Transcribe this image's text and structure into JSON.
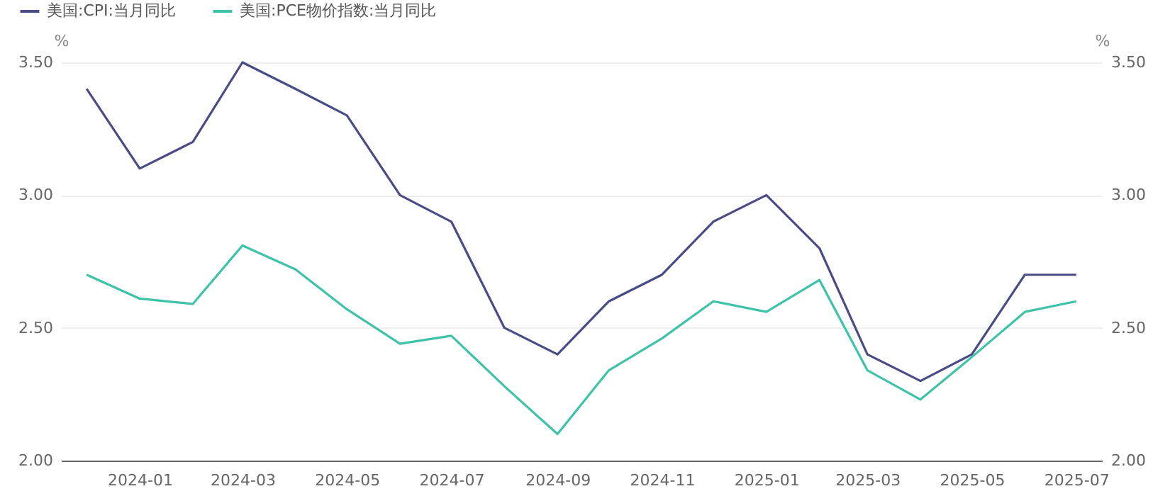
{
  "chart_data": {
    "type": "line",
    "x": [
      "2023-12",
      "2024-01",
      "2024-02",
      "2024-03",
      "2024-04",
      "2024-05",
      "2024-06",
      "2024-07",
      "2024-08",
      "2024-09",
      "2024-10",
      "2024-11",
      "2024-12",
      "2025-01",
      "2025-02",
      "2025-03",
      "2025-04",
      "2025-05",
      "2025-06",
      "2025-07"
    ],
    "series": [
      {
        "name": "美国:CPI:当月同比",
        "color": "#4b4b85",
        "values": [
          3.4,
          3.1,
          3.2,
          3.5,
          3.4,
          3.3,
          3.0,
          2.9,
          2.5,
          2.4,
          2.6,
          2.7,
          2.9,
          3.0,
          2.8,
          2.4,
          2.3,
          2.4,
          2.7,
          2.7
        ]
      },
      {
        "name": "美国:PCE物价指数:当月同比",
        "color": "#3ec3a9",
        "values": [
          2.7,
          2.61,
          2.59,
          2.81,
          2.72,
          2.57,
          2.44,
          2.47,
          2.28,
          2.1,
          2.34,
          2.46,
          2.6,
          2.56,
          2.68,
          2.34,
          2.23,
          2.39,
          2.56,
          2.6
        ]
      }
    ],
    "xlim": [
      "2023-11-16",
      "2025-07-16"
    ],
    "xticks": [
      "2024-01",
      "2024-03",
      "2024-05",
      "2024-07",
      "2024-09",
      "2024-11",
      "2025-01",
      "2025-03",
      "2025-05",
      "2025-07"
    ],
    "ylim": [
      2,
      3.5
    ],
    "yticks": [
      {
        "value": 2,
        "label": "2.00"
      },
      {
        "value": 2.5,
        "label": "2.50"
      },
      {
        "value": 3,
        "label": "3.00"
      },
      {
        "value": 3.5,
        "label": "3.50"
      }
    ],
    "y2lim": [
      2,
      3.5
    ],
    "y2ticks": [
      {
        "value": 2,
        "label": "2.00"
      },
      {
        "value": 2.5,
        "label": "2.50"
      },
      {
        "value": 3,
        "label": "3.00"
      },
      {
        "value": 3.5,
        "label": "3.50"
      }
    ],
    "ylabel": "%",
    "y2label": "%",
    "grid": "y",
    "legend": "top left",
    "marker": "none",
    "line_style": "solid"
  }
}
